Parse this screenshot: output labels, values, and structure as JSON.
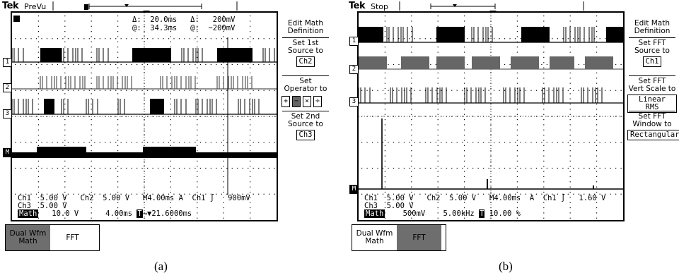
{
  "panel_a": {
    "brand": "Tek",
    "mode": "PreVu",
    "cursor": {
      "row1": "Δ:  20.0ms   Δ:   200mV",
      "row2": "@:  34.3ms   @:  −200mV"
    },
    "channel_markers": [
      "1",
      "2",
      "3",
      "M"
    ],
    "menu": {
      "title": "Edit Math\nDefinition",
      "src1_label": "Set 1st\nSource to",
      "src1_value": "Ch2",
      "op_label": "Set\nOperator to",
      "operators": [
        "+",
        "−",
        "×",
        "÷"
      ],
      "selected_operator": "−",
      "src2_label": "Set 2nd\nSource to",
      "src2_value": "Ch3"
    },
    "readout": {
      "line1": "Ch1  5.00 V   Ch2  5.00 V   M4.00ms A  Ch1 ∫   900mV",
      "line2": "Ch3  5.00 V",
      "math_badge": "Math",
      "line3": "   10.0 V      4.00ms ",
      "trigger": "→▼21.6000ms"
    },
    "buttons": [
      "Dual Wfm\nMath",
      "FFT"
    ],
    "caption": "(a)"
  },
  "panel_b": {
    "brand": "Tek",
    "mode": "Stop",
    "channel_markers": [
      "1",
      "2",
      "3",
      "M"
    ],
    "menu": {
      "title": "Edit Math\nDefinition",
      "src_label": "Set FFT\nSource to",
      "src_value": "Ch1",
      "scale_label": "Set FFT\nVert Scale to",
      "scale_value": "Linear RMS",
      "window_label": "Set FFT\nWindow to",
      "window_value": "Rectangular"
    },
    "readout": {
      "line1": "Ch1  5.00 V   Ch2  5.00 V   M4.00ms  A  Ch1 ∫   1.60 V",
      "line2": "Ch3  5.00 V",
      "math_badge": "Math",
      "line3": "    500mV    5.00kHz ",
      "trigger": "10.00 %"
    },
    "buttons": [
      "Dual Wfm\nMath",
      "FFT"
    ],
    "caption": "(b)"
  }
}
